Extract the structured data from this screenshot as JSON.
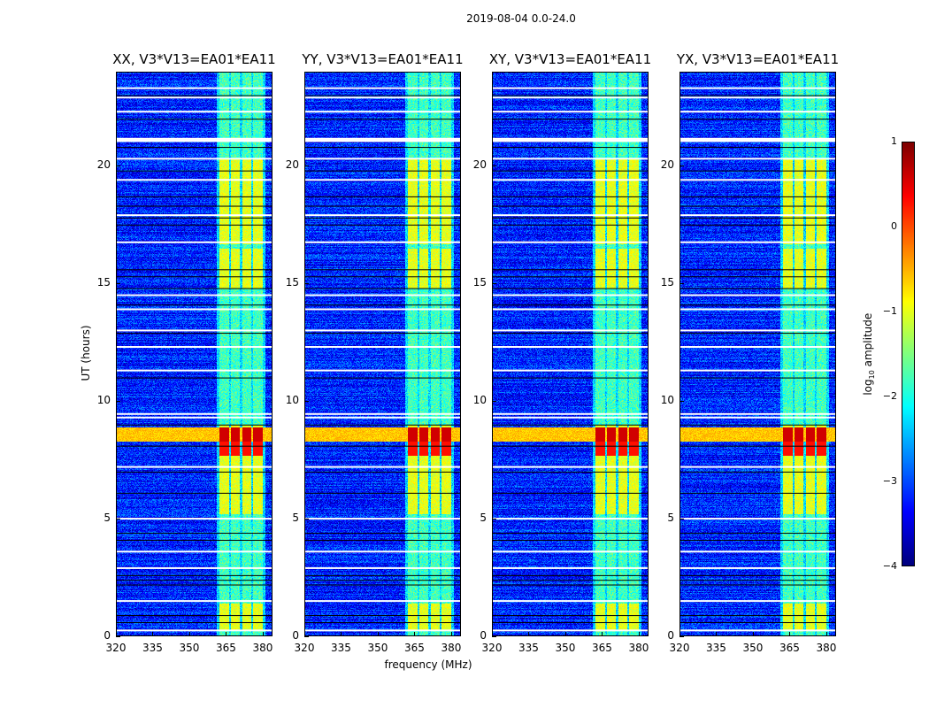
{
  "chart_data": {
    "type": "heatmap",
    "title": "2019-08-04 0.0-24.0",
    "xlabel": "frequency (MHz)",
    "ylabel": "UT (hours)",
    "xlim": [
      320,
      384
    ],
    "ylim": [
      0,
      24
    ],
    "xticks": [
      320,
      335,
      350,
      365,
      380
    ],
    "yticks": [
      0,
      5,
      10,
      15,
      20
    ],
    "panels": [
      {
        "title": "XX, V3*V13=EA01*EA11"
      },
      {
        "title": "YY, V3*V13=EA01*EA11"
      },
      {
        "title": "XY, V3*V13=EA01*EA11"
      },
      {
        "title": "YX, V3*V13=EA01*EA11"
      }
    ],
    "colorbar": {
      "label": "log10 amplitude",
      "label_main": "log",
      "label_sub": "10",
      "label_rest": " amplitude",
      "range": [
        -4,
        1
      ],
      "ticks": [
        1,
        0,
        -1,
        -2,
        -3,
        -4
      ],
      "colormap": "jet"
    },
    "background_level": -3.2,
    "rfi_subbands_mhz": [
      [
        362,
        366
      ],
      [
        367,
        370.5
      ],
      [
        371.5,
        375
      ],
      [
        376,
        380
      ]
    ],
    "rfi_background_level": -2.0,
    "strong_rfi_periods_hours": [
      [
        0.3,
        1.4
      ],
      [
        5.2,
        9.0
      ],
      [
        14.8,
        16.5
      ],
      [
        16.7,
        20.3
      ]
    ],
    "strong_rfi_level": -1.0,
    "broadband_event_hours": [
      8.3,
      8.9
    ],
    "broadband_event_level": -0.6,
    "broadband_event_rfi_level": 0.6,
    "flagged_white_hours": [
      0.25,
      1.5,
      2.9,
      3.6,
      5.0,
      7.2,
      9.3,
      9.45,
      11.3,
      12.3,
      13.0,
      13.9,
      14.5,
      16.75,
      17.9,
      19.4,
      20.3,
      21.05,
      21.1,
      21.15,
      22.3,
      22.9,
      23.3
    ],
    "flagged_black_hours": [
      0.6,
      0.9,
      2.2,
      2.4,
      2.6,
      4.1,
      4.4,
      6.1,
      7.0,
      8.1,
      9.0,
      11.0,
      12.9,
      14.1,
      14.8,
      15.3,
      15.6,
      17.5,
      17.8,
      18.3,
      18.7,
      19.8,
      20.8,
      22.0,
      23.0
    ]
  }
}
